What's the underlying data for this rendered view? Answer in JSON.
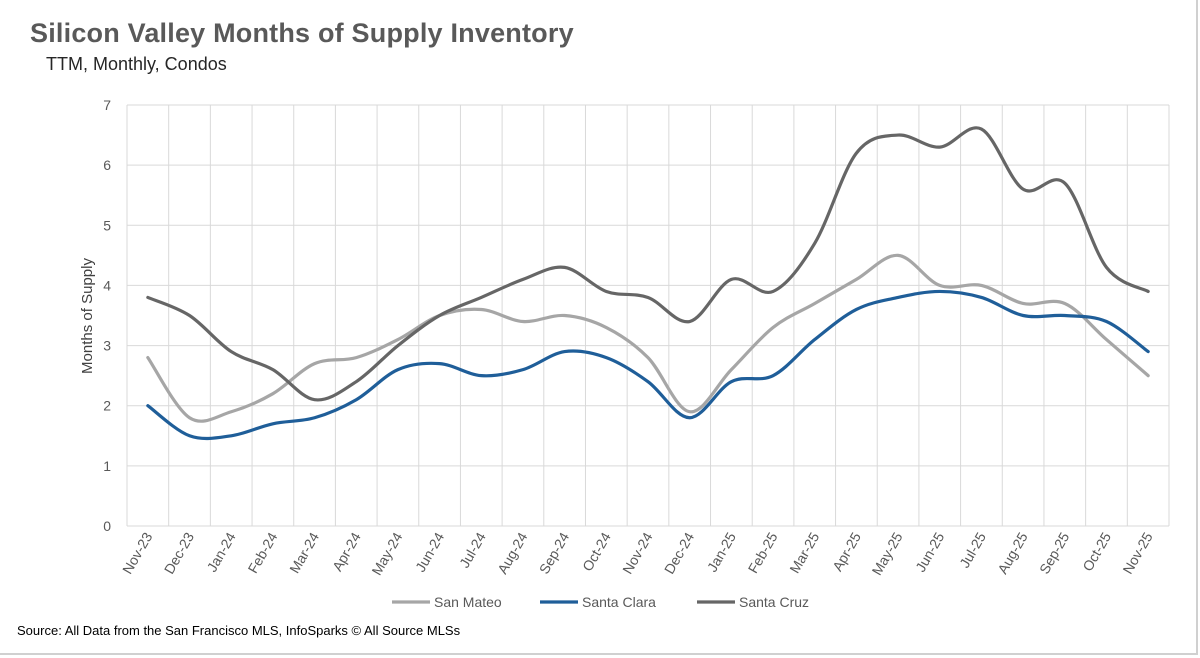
{
  "title": "Silicon Valley Months of Supply Inventory",
  "subtitle": "TTM, Monthly, Condos",
  "source": "Source: All Data from the San Francisco MLS, InfoSparks © All Source MLSs",
  "chart_data": {
    "type": "line",
    "ylabel": "Months of Supply",
    "ylim": [
      0,
      7
    ],
    "yticks": [
      0,
      1,
      2,
      3,
      4,
      5,
      6,
      7
    ],
    "grid": true,
    "legend_position": "bottom",
    "categories": [
      "Nov-23",
      "Dec-23",
      "Jan-24",
      "Feb-24",
      "Mar-24",
      "Apr-24",
      "May-24",
      "Jun-24",
      "Jul-24",
      "Aug-24",
      "Sep-24",
      "Oct-24",
      "Nov-24",
      "Dec-24",
      "Jan-25",
      "Feb-25",
      "Mar-25",
      "Apr-25",
      "May-25",
      "Jun-25",
      "Jul-25",
      "Aug-25",
      "Sep-25",
      "Oct-25",
      "Nov-25"
    ],
    "series": [
      {
        "name": "San Mateo",
        "color": "#a6a6a6",
        "values": [
          2.8,
          1.8,
          1.9,
          2.2,
          2.7,
          2.8,
          3.1,
          3.5,
          3.6,
          3.4,
          3.5,
          3.3,
          2.8,
          1.9,
          2.6,
          3.3,
          3.7,
          4.1,
          4.5,
          4.0,
          4.0,
          3.7,
          3.7,
          3.1,
          2.5
        ]
      },
      {
        "name": "Santa Clara",
        "color": "#1f5e99",
        "values": [
          2.0,
          1.5,
          1.5,
          1.7,
          1.8,
          2.1,
          2.6,
          2.7,
          2.5,
          2.6,
          2.9,
          2.8,
          2.4,
          1.8,
          2.4,
          2.5,
          3.1,
          3.6,
          3.8,
          3.9,
          3.8,
          3.5,
          3.5,
          3.4,
          2.9
        ]
      },
      {
        "name": "Santa Cruz",
        "color": "#666666",
        "values": [
          3.8,
          3.5,
          2.9,
          2.6,
          2.1,
          2.4,
          3.0,
          3.5,
          3.8,
          4.1,
          4.3,
          3.9,
          3.8,
          3.4,
          4.1,
          3.9,
          4.7,
          6.2,
          6.5,
          6.3,
          6.6,
          5.6,
          5.7,
          4.3,
          3.9
        ]
      }
    ]
  }
}
